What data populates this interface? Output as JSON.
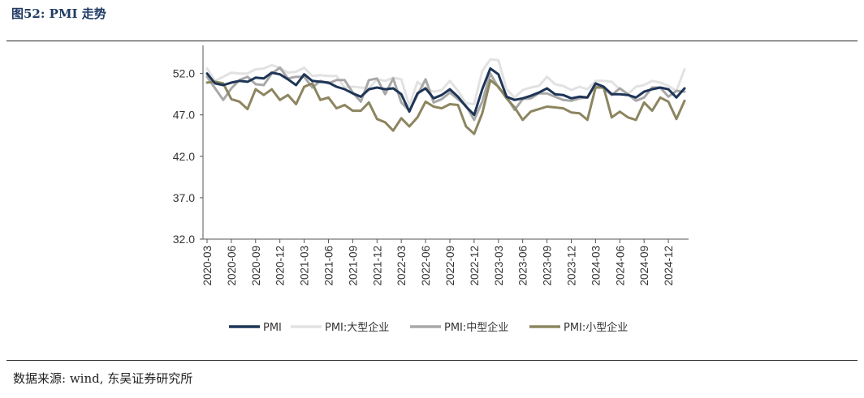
{
  "figure": {
    "title": "图52:  PMI 走势",
    "source": "数据来源: wind, 东吴证券研究所"
  },
  "chart_data": {
    "type": "line",
    "title": "",
    "xlabel": "",
    "ylabel": "",
    "ylim": [
      32.0,
      55.0
    ],
    "yticks": [
      "32.0",
      "37.0",
      "42.0",
      "47.0",
      "52.0"
    ],
    "xtick_labels": [
      "2020-03",
      "2020-06",
      "2020-09",
      "2020-12",
      "2021-03",
      "2021-06",
      "2021-09",
      "2021-12",
      "2022-03",
      "2022-06",
      "2022-09",
      "2022-12",
      "2023-03",
      "2023-06",
      "2023-09",
      "2023-12",
      "2024-03",
      "2024-06",
      "2024-09",
      "2024-12"
    ],
    "x": [
      "2020-03",
      "2020-04",
      "2020-05",
      "2020-06",
      "2020-07",
      "2020-08",
      "2020-09",
      "2020-10",
      "2020-11",
      "2020-12",
      "2021-01",
      "2021-02",
      "2021-03",
      "2021-04",
      "2021-05",
      "2021-06",
      "2021-07",
      "2021-08",
      "2021-09",
      "2021-10",
      "2021-11",
      "2021-12",
      "2022-01",
      "2022-02",
      "2022-03",
      "2022-04",
      "2022-05",
      "2022-06",
      "2022-07",
      "2022-08",
      "2022-09",
      "2022-10",
      "2022-11",
      "2022-12",
      "2023-01",
      "2023-02",
      "2023-03",
      "2023-04",
      "2023-05",
      "2023-06",
      "2023-07",
      "2023-08",
      "2023-09",
      "2023-10",
      "2023-11",
      "2023-12",
      "2024-01",
      "2024-02",
      "2024-03",
      "2024-04",
      "2024-05",
      "2024-06",
      "2024-07",
      "2024-08",
      "2024-09",
      "2024-10",
      "2024-11",
      "2024-12",
      "2025-01",
      "2025-02"
    ],
    "legend_position": "bottom",
    "series": [
      {
        "name": "PMI",
        "color": "#1e3557",
        "values": [
          52.0,
          50.8,
          50.6,
          50.9,
          51.1,
          51.0,
          51.5,
          51.4,
          52.1,
          51.9,
          51.3,
          50.6,
          51.9,
          51.1,
          51.0,
          50.9,
          50.4,
          50.1,
          49.6,
          49.2,
          50.1,
          50.3,
          50.1,
          50.2,
          49.5,
          47.4,
          49.6,
          50.2,
          49.0,
          49.4,
          50.1,
          49.2,
          48.0,
          47.0,
          50.1,
          52.6,
          51.9,
          49.2,
          48.8,
          49.0,
          49.3,
          49.7,
          50.2,
          49.5,
          49.4,
          49.0,
          49.2,
          49.1,
          50.8,
          50.4,
          49.5,
          49.5,
          49.4,
          49.1,
          49.8,
          50.1,
          50.3,
          50.1,
          49.1,
          50.2
        ]
      },
      {
        "name": "PMI:大型企业",
        "color": "#e2e2e2",
        "values": [
          52.6,
          51.1,
          51.6,
          52.1,
          52.0,
          52.0,
          52.5,
          52.6,
          53.0,
          52.7,
          52.1,
          52.2,
          52.7,
          51.7,
          51.8,
          51.7,
          51.7,
          50.3,
          50.4,
          50.3,
          50.2,
          51.3,
          51.1,
          51.5,
          51.3,
          48.1,
          51.0,
          50.2,
          49.8,
          50.0,
          51.1,
          49.9,
          48.4,
          48.3,
          52.3,
          53.7,
          53.6,
          50.1,
          49.1,
          50.0,
          50.3,
          50.5,
          51.6,
          50.7,
          50.5,
          50.0,
          50.4,
          50.1,
          51.1,
          51.1,
          51.0,
          50.1,
          49.5,
          50.4,
          50.6,
          51.1,
          50.9,
          50.5,
          49.9,
          52.5
        ]
      },
      {
        "name": "PMI:中型企业",
        "color": "#a8a8a8",
        "values": [
          51.6,
          50.2,
          48.8,
          50.2,
          51.2,
          51.6,
          50.7,
          50.6,
          52.0,
          52.7,
          51.4,
          51.6,
          51.6,
          50.3,
          51.1,
          50.8,
          51.2,
          51.2,
          49.7,
          48.6,
          51.2,
          51.4,
          49.5,
          51.4,
          48.5,
          47.5,
          49.4,
          51.3,
          48.5,
          48.9,
          49.7,
          48.9,
          48.1,
          46.4,
          48.6,
          52.0,
          50.3,
          49.2,
          47.6,
          48.9,
          49.0,
          49.6,
          49.6,
          49.2,
          48.8,
          48.7,
          49.0,
          49.1,
          50.6,
          50.2,
          49.4,
          50.2,
          49.5,
          48.7,
          49.1,
          50.3,
          50.3,
          49.2,
          49.9,
          49.8
        ]
      },
      {
        "name": "PMI:小型企业",
        "color": "#8c8560",
        "values": [
          50.9,
          51.0,
          50.8,
          48.9,
          48.6,
          47.7,
          50.1,
          49.4,
          50.1,
          48.8,
          49.4,
          48.3,
          50.4,
          50.8,
          48.8,
          49.1,
          47.8,
          48.2,
          47.5,
          47.5,
          48.5,
          46.5,
          46.1,
          45.1,
          46.6,
          45.6,
          46.7,
          48.6,
          48.0,
          47.8,
          48.3,
          48.2,
          45.6,
          44.7,
          47.2,
          51.2,
          50.4,
          49.0,
          47.9,
          46.4,
          47.4,
          47.7,
          48.0,
          47.9,
          47.8,
          47.3,
          47.2,
          46.4,
          50.3,
          50.3,
          46.7,
          47.4,
          46.7,
          46.4,
          48.5,
          47.5,
          49.1,
          48.6,
          46.5,
          48.7
        ]
      }
    ]
  }
}
